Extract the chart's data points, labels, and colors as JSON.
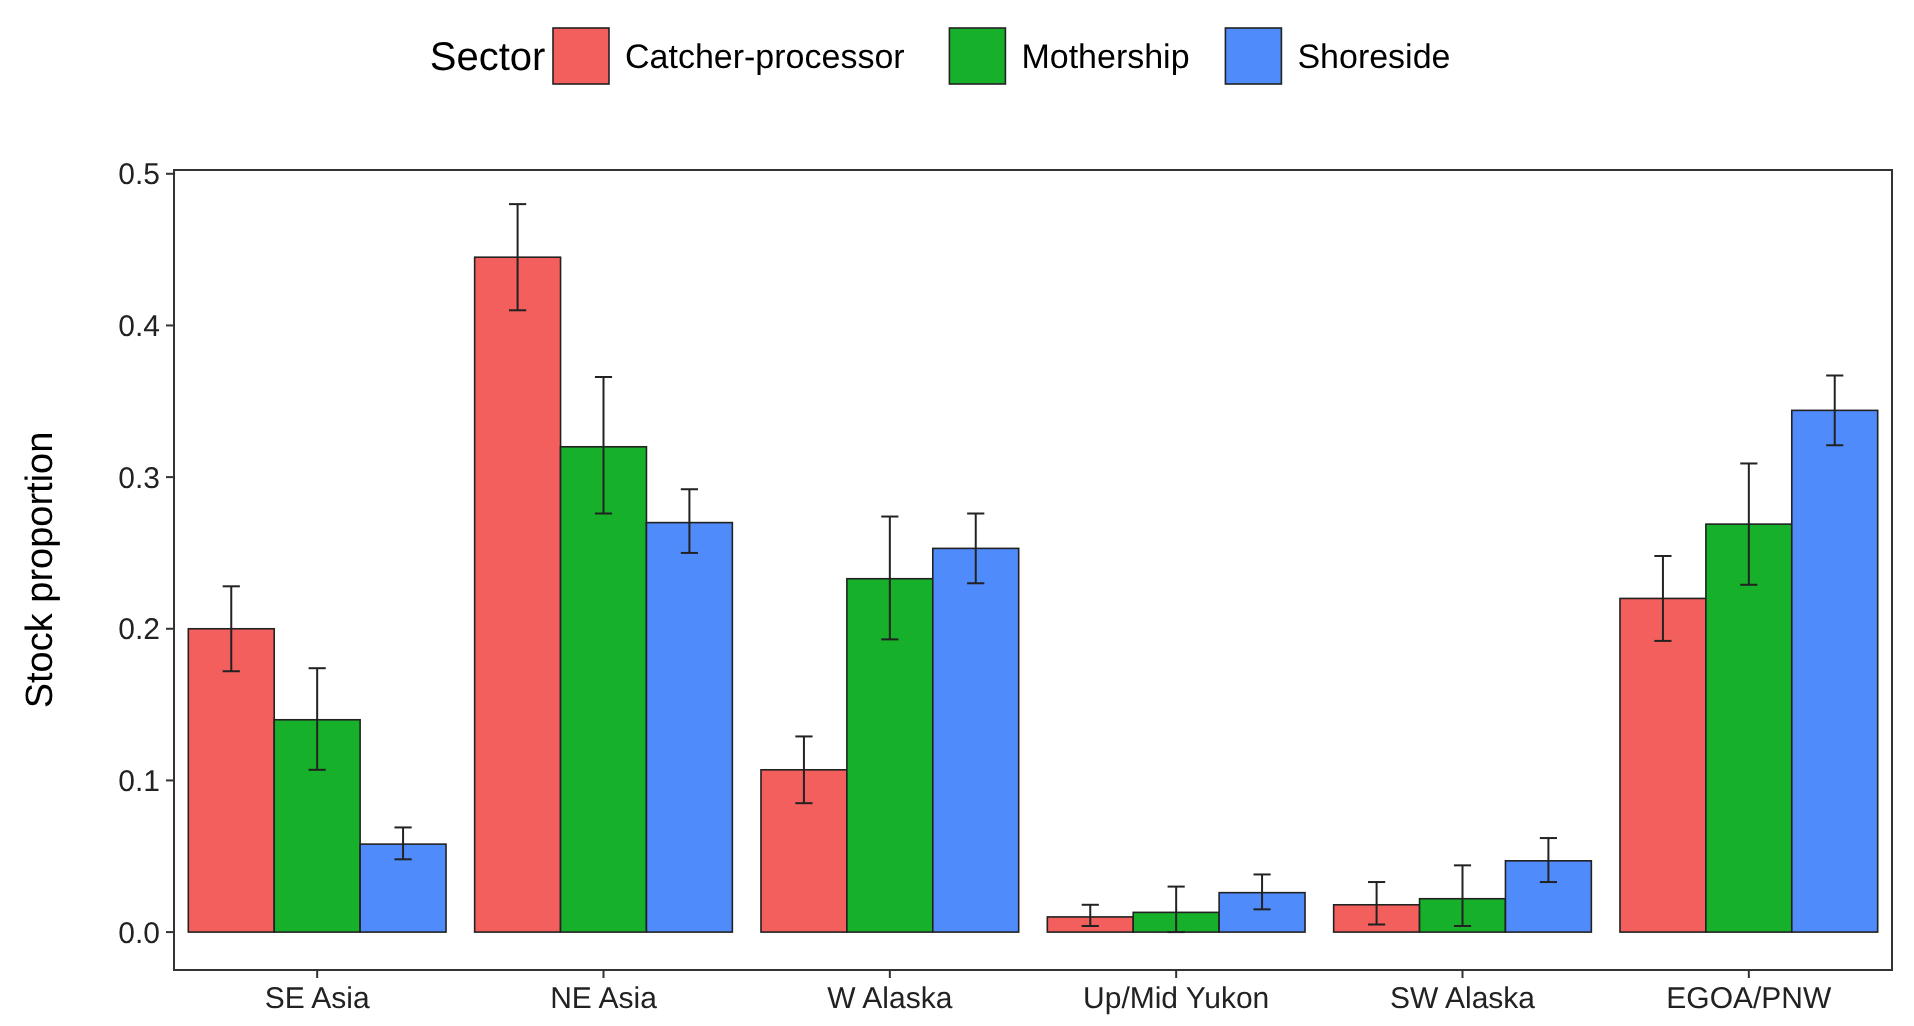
{
  "chart_data": {
    "type": "bar",
    "ylabel": "Stock proportion",
    "legend_title": "Sector",
    "legend": "top",
    "categories": [
      "SE Asia",
      "NE Asia",
      "W Alaska",
      "Up/Mid Yukon",
      "SW Alaska",
      "EGOA/PNW"
    ],
    "series": [
      {
        "name": "Catcher-processor",
        "color": "#f25f5c",
        "values": [
          0.2,
          0.445,
          0.107,
          0.01,
          0.018,
          0.22
        ],
        "errors": [
          [
            0.172,
            0.228
          ],
          [
            0.41,
            0.48
          ],
          [
            0.085,
            0.129
          ],
          [
            0.004,
            0.018
          ],
          [
            0.005,
            0.033
          ],
          [
            0.192,
            0.248
          ]
        ]
      },
      {
        "name": "Mothership",
        "color": "#17b02b",
        "values": [
          0.14,
          0.32,
          0.233,
          0.013,
          0.022,
          0.269
        ],
        "errors": [
          [
            0.107,
            0.174
          ],
          [
            0.276,
            0.366
          ],
          [
            0.193,
            0.274
          ],
          [
            0.0,
            0.03
          ],
          [
            0.004,
            0.044
          ],
          [
            0.229,
            0.309
          ]
        ]
      },
      {
        "name": "Shoreside",
        "color": "#4f8bfa",
        "values": [
          0.058,
          0.27,
          0.253,
          0.026,
          0.047,
          0.344
        ],
        "errors": [
          [
            0.048,
            0.069
          ],
          [
            0.25,
            0.292
          ],
          [
            0.23,
            0.276
          ],
          [
            0.015,
            0.038
          ],
          [
            0.033,
            0.062
          ],
          [
            0.321,
            0.367
          ]
        ]
      }
    ],
    "ylim": [
      -0.025,
      0.5025
    ],
    "yticks": [
      {
        "value": 0,
        "label": "0.0"
      },
      0.1,
      0.2,
      0.3,
      0.4,
      0.5
    ],
    "grid": false
  }
}
